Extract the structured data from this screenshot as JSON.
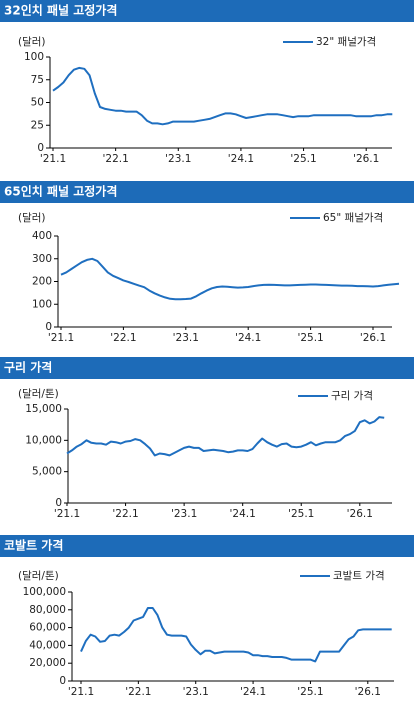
{
  "chart_data": [
    {
      "type": "line",
      "title": "32인치 패널 고정가격",
      "unit": "(달러)",
      "categories": [
        "'21.1",
        null,
        null,
        null,
        null,
        null,
        null,
        null,
        null,
        null,
        null,
        null,
        "'22.1",
        null,
        null,
        null,
        null,
        null,
        null,
        null,
        null,
        null,
        null,
        null,
        "'23.1",
        null,
        null,
        null,
        null,
        null,
        null,
        null,
        null,
        null,
        null,
        null,
        "'24.1",
        null,
        null,
        null,
        null,
        null,
        null,
        null,
        null,
        null,
        null,
        null,
        "'25.1",
        null,
        null,
        null,
        null,
        null,
        null,
        null,
        null,
        null,
        null,
        null,
        "'26.1",
        null,
        null,
        null,
        null,
        null
      ],
      "series": [
        {
          "name": "32\" 패널가격",
          "color": "#1f6fc0",
          "values": [
            63,
            67,
            72,
            80,
            86,
            88,
            87,
            80,
            60,
            45,
            43,
            42,
            41,
            41,
            40,
            40,
            40,
            36,
            30,
            27,
            27,
            26,
            27,
            29,
            29,
            29,
            29,
            29,
            30,
            31,
            32,
            34,
            36,
            38,
            38,
            37,
            35,
            33,
            34,
            35,
            36,
            37,
            37,
            37,
            36,
            35,
            34,
            35,
            35,
            35,
            36,
            36,
            36,
            36,
            36,
            36,
            36,
            36,
            35,
            35,
            35,
            35,
            36,
            36,
            37,
            37
          ]
        }
      ],
      "ylim": [
        0,
        100
      ],
      "yticks": [
        0,
        25,
        50,
        75,
        100
      ]
    },
    {
      "type": "line",
      "title": "65인치 패널 고정가격",
      "unit": "(달러)",
      "categories": [
        "'21.1",
        null,
        null,
        null,
        null,
        null,
        null,
        null,
        null,
        null,
        null,
        null,
        "'22.1",
        null,
        null,
        null,
        null,
        null,
        null,
        null,
        null,
        null,
        null,
        null,
        "'23.1",
        null,
        null,
        null,
        null,
        null,
        null,
        null,
        null,
        null,
        null,
        null,
        "'24.1",
        null,
        null,
        null,
        null,
        null,
        null,
        null,
        null,
        null,
        null,
        null,
        "'25.1",
        null,
        null,
        null,
        null,
        null,
        null,
        null,
        null,
        null,
        null,
        null,
        "'26.1",
        null,
        null,
        null,
        null,
        null
      ],
      "series": [
        {
          "name": "65\" 패널가격",
          "color": "#1f6fc0",
          "values": [
            230,
            240,
            255,
            270,
            285,
            295,
            300,
            290,
            265,
            240,
            225,
            215,
            205,
            198,
            190,
            182,
            175,
            160,
            148,
            138,
            130,
            124,
            122,
            122,
            123,
            125,
            135,
            148,
            160,
            170,
            176,
            178,
            177,
            175,
            173,
            174,
            176,
            180,
            183,
            185,
            186,
            185,
            184,
            183,
            183,
            184,
            185,
            186,
            187,
            187,
            186,
            185,
            184,
            183,
            182,
            182,
            181,
            180,
            180,
            179,
            178,
            180,
            183,
            186,
            188,
            190
          ]
        }
      ],
      "ylim": [
        0,
        400
      ],
      "yticks": [
        0,
        100,
        200,
        300,
        400
      ]
    },
    {
      "type": "line",
      "title": "구리 가격",
      "unit": "(달러/톤)",
      "categories": [
        "'21.1",
        null,
        null,
        null,
        null,
        null,
        null,
        null,
        null,
        null,
        null,
        null,
        "'22.1",
        null,
        null,
        null,
        null,
        null,
        null,
        null,
        null,
        null,
        null,
        null,
        "'23.1",
        null,
        null,
        null,
        null,
        null,
        null,
        null,
        null,
        null,
        null,
        null,
        "'24.1",
        null,
        null,
        null,
        null,
        null,
        null,
        null,
        null,
        null,
        null,
        null,
        "'25.1",
        null,
        null,
        null,
        null,
        null,
        null,
        null,
        null,
        null,
        null,
        null,
        "'26.1",
        null,
        null,
        null,
        null,
        null
      ],
      "series": [
        {
          "name": "구리 가격",
          "color": "#1f6fc0",
          "values": [
            7900,
            8400,
            9000,
            9400,
            10000,
            9600,
            9500,
            9500,
            9300,
            9800,
            9700,
            9500,
            9800,
            9900,
            10200,
            10000,
            9400,
            8700,
            7600,
            7900,
            7800,
            7600,
            8000,
            8400,
            8800,
            9000,
            8800,
            8800,
            8300,
            8400,
            8500,
            8400,
            8300,
            8100,
            8200,
            8400,
            8400,
            8300,
            8600,
            9500,
            10300,
            9700,
            9300,
            9000,
            9400,
            9500,
            9000,
            8900,
            9000,
            9300,
            9700,
            9200,
            9500,
            9700,
            9700,
            9700,
            10000,
            10700,
            11000,
            11500,
            12900,
            13200,
            12700,
            13000,
            13700,
            13600
          ]
        }
      ],
      "ylim": [
        0,
        15000
      ],
      "yticks": [
        0,
        {
          "value": 5000,
          "label": "5,000"
        },
        {
          "value": 10000,
          "label": "10,000"
        },
        {
          "value": 15000,
          "label": "15,000"
        }
      ]
    },
    {
      "type": "line",
      "title": "코발트 가격",
      "unit": "(달러/톤)",
      "categories": [
        "'21.1",
        null,
        null,
        null,
        null,
        null,
        null,
        null,
        null,
        null,
        null,
        null,
        "'22.1",
        null,
        null,
        null,
        null,
        null,
        null,
        null,
        null,
        null,
        null,
        null,
        "'23.1",
        null,
        null,
        null,
        null,
        null,
        null,
        null,
        null,
        null,
        null,
        null,
        "'24.1",
        null,
        null,
        null,
        null,
        null,
        null,
        null,
        null,
        null,
        null,
        null,
        "'25.1",
        null,
        null,
        null,
        null,
        null,
        null,
        null,
        null,
        null,
        null,
        null,
        "'26.1",
        null,
        null,
        null,
        null,
        null
      ],
      "series": [
        {
          "name": "코발트 가격",
          "color": "#1f6fc0",
          "values": [
            33000,
            45000,
            52000,
            50000,
            44000,
            45000,
            51000,
            52000,
            51000,
            55000,
            60000,
            68000,
            70000,
            72000,
            82000,
            82000,
            74000,
            60000,
            52000,
            51000,
            51000,
            51000,
            50000,
            41000,
            35000,
            30000,
            34000,
            34000,
            31000,
            32000,
            33000,
            33000,
            33000,
            33000,
            33000,
            32000,
            29000,
            29000,
            28000,
            28000,
            27000,
            27000,
            27000,
            26000,
            24000,
            24000,
            24000,
            24000,
            24000,
            22000,
            33000,
            33000,
            33000,
            33000,
            33000,
            40000,
            47000,
            50000,
            57000,
            58000,
            58000,
            58000,
            58000,
            58000,
            58000,
            58000
          ]
        }
      ],
      "ylim": [
        0,
        100000
      ],
      "yticks": [
        0,
        {
          "value": 20000,
          "label": "20,000"
        },
        {
          "value": 40000,
          "label": "40,000"
        },
        {
          "value": 60000,
          "label": "60,000"
        },
        {
          "value": 80000,
          "label": "80,000"
        },
        {
          "value": 100000,
          "label": "100,000"
        }
      ]
    }
  ]
}
